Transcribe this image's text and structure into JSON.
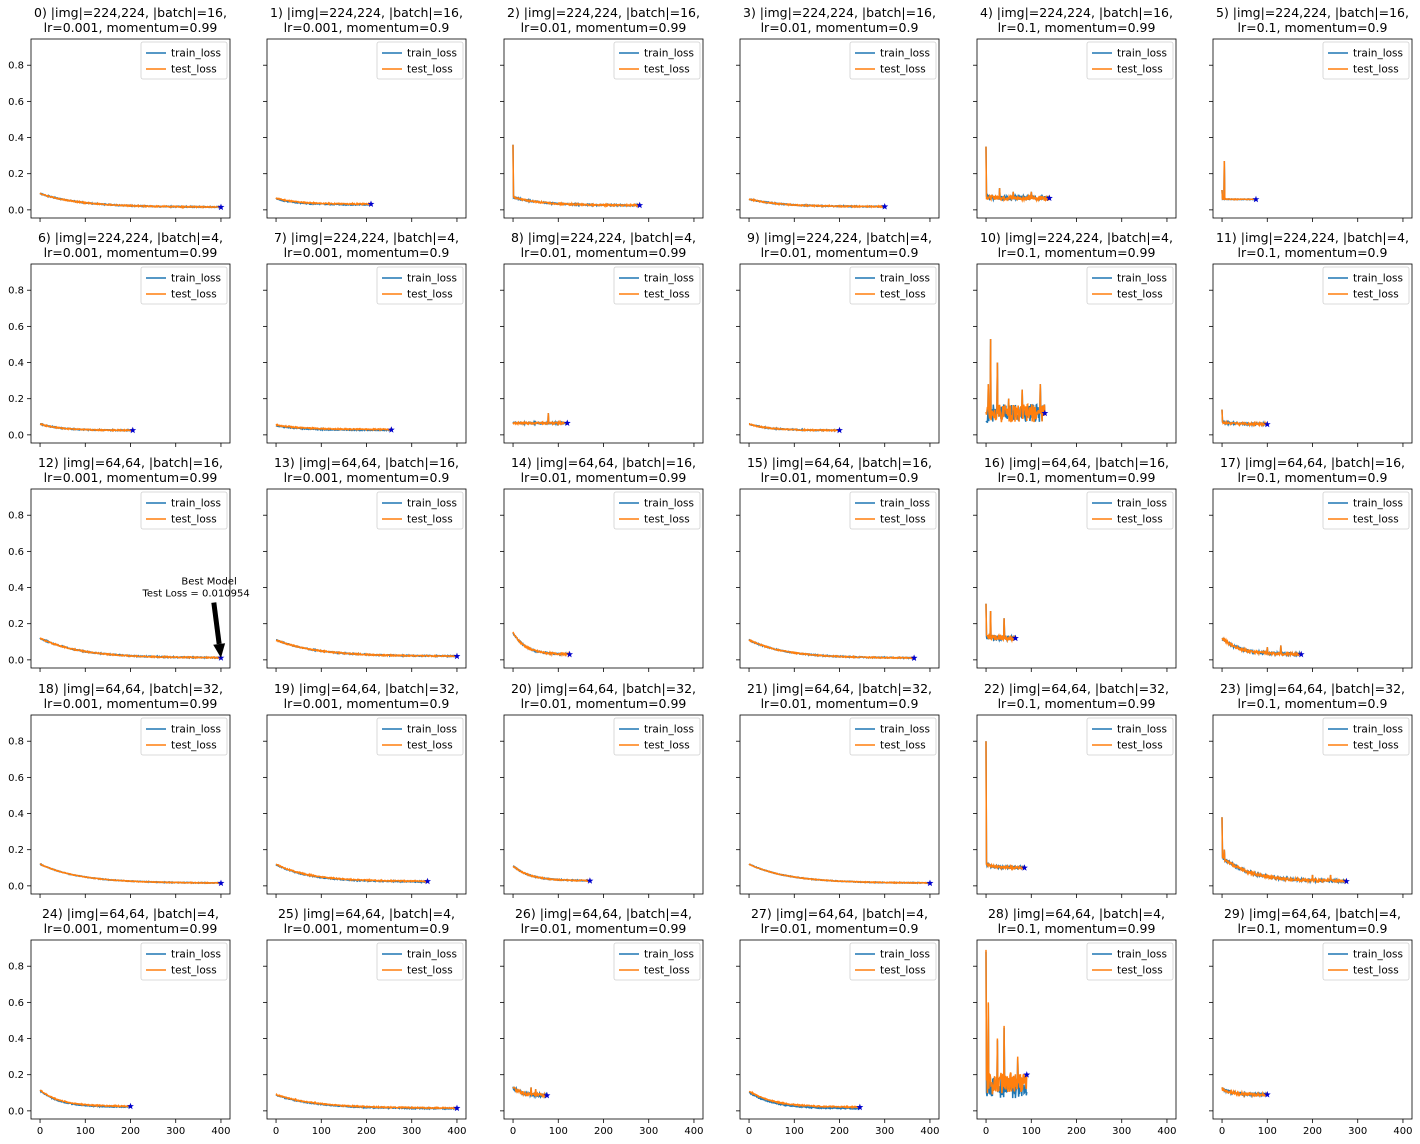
{
  "figure": {
    "series_names": [
      "train_loss",
      "test_loss"
    ],
    "series_colors": [
      "#1f77b4",
      "#ff7f0e"
    ],
    "marker_color": "#0000cc",
    "x_ticks": [
      0,
      100,
      200,
      300,
      400
    ],
    "y_ticks": [
      0.0,
      0.2,
      0.4,
      0.6,
      0.8
    ],
    "y_tick_labels": [
      "0.0",
      "0.2",
      "0.4",
      "0.6",
      "0.8"
    ],
    "xlim": [
      -20,
      420
    ],
    "ylim": [
      -0.045,
      0.945
    ],
    "legend_loc": "upper right",
    "rows": 5,
    "cols": 6
  },
  "chart_data": [
    {
      "type": "line",
      "title": [
        "0) |img|=224,224, |batch|=16,",
        "lr=0.001, momentum=0.99"
      ],
      "length": 400,
      "y0": 0.09,
      "yend": 0.015,
      "noise": 0.003,
      "spikes": [],
      "gap": 0.0,
      "best": [
        400,
        0.015
      ]
    },
    {
      "type": "line",
      "title": [
        "1) |img|=224,224, |batch|=16,",
        "lr=0.001, momentum=0.9"
      ],
      "length": 210,
      "y0": 0.065,
      "yend": 0.032,
      "noise": 0.003,
      "spikes": [],
      "gap": 0.004,
      "best": [
        210,
        0.032
      ]
    },
    {
      "type": "line",
      "title": [
        "2) |img|=224,224, |batch|=16,",
        "lr=0.01, momentum=0.99"
      ],
      "length": 280,
      "y0": 0.07,
      "yend": 0.025,
      "noise": 0.004,
      "spikes": [
        [
          0,
          0.36
        ]
      ],
      "gap": 0.0,
      "best": [
        280,
        0.025
      ]
    },
    {
      "type": "line",
      "title": [
        "3) |img|=224,224, |batch|=16,",
        "lr=0.01, momentum=0.9"
      ],
      "length": 300,
      "y0": 0.06,
      "yend": 0.018,
      "noise": 0.003,
      "spikes": [],
      "gap": 0.0,
      "best": [
        300,
        0.018
      ]
    },
    {
      "type": "line",
      "title": [
        "4) |img|=224,224, |batch|=16,",
        "lr=0.1, momentum=0.99"
      ],
      "length": 140,
      "y0": 0.07,
      "yend": 0.065,
      "noise": 0.012,
      "spikes": [
        [
          0,
          0.35
        ],
        [
          30,
          0.12
        ],
        [
          60,
          0.1
        ],
        [
          100,
          0.1
        ]
      ],
      "gap": 0.0,
      "best": [
        140,
        0.065
      ]
    },
    {
      "type": "line",
      "title": [
        "5) |img|=224,224, |batch|=16,",
        "lr=0.1, momentum=0.9"
      ],
      "length": 75,
      "y0": 0.06,
      "yend": 0.058,
      "noise": 0.002,
      "spikes": [
        [
          0,
          0.11
        ],
        [
          5,
          0.27
        ]
      ],
      "gap": 0.0,
      "best": [
        75,
        0.058
      ]
    },
    {
      "type": "line",
      "title": [
        "6) |img|=224,224, |batch|=4,",
        "lr=0.001, momentum=0.99"
      ],
      "length": 205,
      "y0": 0.06,
      "yend": 0.025,
      "noise": 0.003,
      "spikes": [],
      "gap": 0.0,
      "best": [
        205,
        0.025
      ]
    },
    {
      "type": "line",
      "title": [
        "7) |img|=224,224, |batch|=4,",
        "lr=0.001, momentum=0.9"
      ],
      "length": 255,
      "y0": 0.055,
      "yend": 0.03,
      "noise": 0.003,
      "spikes": [],
      "gap": 0.004,
      "best": [
        255,
        0.028
      ]
    },
    {
      "type": "line",
      "title": [
        "8) |img|=224,224, |batch|=4,",
        "lr=0.01, momentum=0.99"
      ],
      "length": 120,
      "y0": 0.065,
      "yend": 0.065,
      "noise": 0.005,
      "spikes": [
        [
          78,
          0.12
        ]
      ],
      "gap": 0.0,
      "best": [
        120,
        0.065
      ]
    },
    {
      "type": "line",
      "title": [
        "9) |img|=224,224, |batch|=4,",
        "lr=0.01, momentum=0.9"
      ],
      "length": 200,
      "y0": 0.06,
      "yend": 0.025,
      "noise": 0.003,
      "spikes": [],
      "gap": 0.0,
      "best": [
        200,
        0.025
      ]
    },
    {
      "type": "line",
      "title": [
        "10) |img|=224,224, |batch|=4,",
        "lr=0.1, momentum=0.99"
      ],
      "length": 130,
      "y0": 0.12,
      "yend": 0.12,
      "noise": 0.05,
      "spikes": [
        [
          5,
          0.28
        ],
        [
          10,
          0.53
        ],
        [
          25,
          0.4
        ],
        [
          50,
          0.2
        ],
        [
          80,
          0.25
        ],
        [
          120,
          0.28
        ]
      ],
      "gap": 0.0,
      "best": [
        130,
        0.12
      ]
    },
    {
      "type": "line",
      "title": [
        "11) |img|=224,224, |batch|=4,",
        "lr=0.1, momentum=0.9"
      ],
      "length": 100,
      "y0": 0.07,
      "yend": 0.06,
      "noise": 0.006,
      "spikes": [
        [
          0,
          0.14
        ]
      ],
      "gap": 0.0,
      "best": [
        100,
        0.058
      ]
    },
    {
      "type": "line",
      "title": [
        "12) |img|=64,64, |batch|=16,",
        "lr=0.001, momentum=0.99"
      ],
      "length": 400,
      "y0": 0.12,
      "yend": 0.011,
      "noise": 0.003,
      "spikes": [],
      "gap": 0.0,
      "best": [
        400,
        0.011
      ]
    },
    {
      "type": "line",
      "title": [
        "13) |img|=64,64, |batch|=16,",
        "lr=0.001, momentum=0.9"
      ],
      "length": 400,
      "y0": 0.11,
      "yend": 0.02,
      "noise": 0.003,
      "spikes": [],
      "gap": 0.0,
      "best": [
        400,
        0.02
      ]
    },
    {
      "type": "line",
      "title": [
        "14) |img|=64,64, |batch|=16,",
        "lr=0.01, momentum=0.99"
      ],
      "length": 125,
      "y0": 0.15,
      "yend": 0.03,
      "noise": 0.005,
      "spikes": [],
      "gap": 0.0,
      "best": [
        125,
        0.03
      ]
    },
    {
      "type": "line",
      "title": [
        "15) |img|=64,64, |batch|=16,",
        "lr=0.01, momentum=0.9"
      ],
      "length": 365,
      "y0": 0.11,
      "yend": 0.01,
      "noise": 0.003,
      "spikes": [],
      "gap": 0.0,
      "best": [
        365,
        0.01
      ]
    },
    {
      "type": "line",
      "title": [
        "16) |img|=64,64, |batch|=16,",
        "lr=0.1, momentum=0.99"
      ],
      "length": 65,
      "y0": 0.13,
      "yend": 0.12,
      "noise": 0.015,
      "spikes": [
        [
          0,
          0.31
        ],
        [
          10,
          0.27
        ],
        [
          40,
          0.23
        ]
      ],
      "gap": 0.0,
      "best": [
        65,
        0.12
      ]
    },
    {
      "type": "line",
      "title": [
        "17) |img|=64,64, |batch|=16,",
        "lr=0.1, momentum=0.9"
      ],
      "length": 175,
      "y0": 0.12,
      "yend": 0.03,
      "noise": 0.008,
      "spikes": [
        [
          100,
          0.07
        ],
        [
          130,
          0.08
        ]
      ],
      "gap": 0.0,
      "best": [
        175,
        0.03
      ]
    },
    {
      "type": "line",
      "title": [
        "18) |img|=64,64, |batch|=32,",
        "lr=0.001, momentum=0.99"
      ],
      "length": 400,
      "y0": 0.12,
      "yend": 0.015,
      "noise": 0.002,
      "spikes": [],
      "gap": 0.0,
      "best": [
        400,
        0.015
      ]
    },
    {
      "type": "line",
      "title": [
        "19) |img|=64,64, |batch|=32,",
        "lr=0.001, momentum=0.9"
      ],
      "length": 335,
      "y0": 0.12,
      "yend": 0.025,
      "noise": 0.003,
      "spikes": [],
      "gap": 0.003,
      "best": [
        335,
        0.025
      ]
    },
    {
      "type": "line",
      "title": [
        "20) |img|=64,64, |batch|=32,",
        "lr=0.01, momentum=0.99"
      ],
      "length": 170,
      "y0": 0.11,
      "yend": 0.028,
      "noise": 0.003,
      "spikes": [],
      "gap": 0.0,
      "best": [
        170,
        0.028
      ]
    },
    {
      "type": "line",
      "title": [
        "21) |img|=64,64, |batch|=32,",
        "lr=0.01, momentum=0.9"
      ],
      "length": 400,
      "y0": 0.12,
      "yend": 0.015,
      "noise": 0.002,
      "spikes": [],
      "gap": 0.0,
      "best": [
        400,
        0.015
      ]
    },
    {
      "type": "line",
      "title": [
        "22) |img|=64,64, |batch|=32,",
        "lr=0.1, momentum=0.99"
      ],
      "length": 85,
      "y0": 0.12,
      "yend": 0.1,
      "noise": 0.008,
      "spikes": [
        [
          0,
          0.8
        ]
      ],
      "gap": 0.0,
      "best": [
        85,
        0.1
      ]
    },
    {
      "type": "line",
      "title": [
        "23) |img|=64,64, |batch|=32,",
        "lr=0.1, momentum=0.9"
      ],
      "length": 275,
      "y0": 0.16,
      "yend": 0.025,
      "noise": 0.008,
      "spikes": [
        [
          0,
          0.38
        ],
        [
          5,
          0.2
        ],
        [
          200,
          0.06
        ],
        [
          240,
          0.06
        ]
      ],
      "gap": 0.0,
      "best": [
        275,
        0.025
      ]
    },
    {
      "type": "line",
      "title": [
        "24) |img|=64,64, |batch|=4,",
        "lr=0.001, momentum=0.99"
      ],
      "length": 200,
      "y0": 0.115,
      "yend": 0.025,
      "noise": 0.003,
      "spikes": [],
      "gap": 0.004,
      "best": [
        200,
        0.025
      ]
    },
    {
      "type": "line",
      "title": [
        "25) |img|=64,64, |batch|=4,",
        "lr=0.001, momentum=0.9"
      ],
      "length": 400,
      "y0": 0.09,
      "yend": 0.015,
      "noise": 0.003,
      "spikes": [],
      "gap": 0.003,
      "best": [
        400,
        0.015
      ]
    },
    {
      "type": "line",
      "title": [
        "26) |img|=64,64, |batch|=4,",
        "lr=0.01, momentum=0.99"
      ],
      "length": 75,
      "y0": 0.13,
      "yend": 0.085,
      "noise": 0.01,
      "spikes": [
        [
          40,
          0.13
        ],
        [
          50,
          0.12
        ]
      ],
      "gap": 0.0,
      "best": [
        75,
        0.085
      ]
    },
    {
      "type": "line",
      "title": [
        "27) |img|=64,64, |batch|=4,",
        "lr=0.01, momentum=0.9"
      ],
      "length": 245,
      "y0": 0.11,
      "yend": 0.02,
      "noise": 0.003,
      "spikes": [],
      "gap": 0.008,
      "best": [
        245,
        0.02
      ]
    },
    {
      "type": "line",
      "title": [
        "28) |img|=64,64, |batch|=4,",
        "lr=0.1, momentum=0.99"
      ],
      "length": 90,
      "y0": 0.15,
      "yend": 0.15,
      "noise": 0.06,
      "spikes": [
        [
          0,
          0.89
        ],
        [
          5,
          0.6
        ],
        [
          25,
          0.4
        ],
        [
          40,
          0.47
        ],
        [
          70,
          0.3
        ]
      ],
      "gap": 0.02,
      "best": [
        90,
        0.2
      ]
    },
    {
      "type": "line",
      "title": [
        "29) |img|=64,64, |batch|=4,",
        "lr=0.1, momentum=0.9"
      ],
      "length": 100,
      "y0": 0.12,
      "yend": 0.09,
      "noise": 0.008,
      "spikes": [
        [
          0,
          0.13
        ]
      ],
      "gap": 0.0,
      "best": [
        100,
        0.09
      ]
    }
  ],
  "annotation": {
    "panel": 12,
    "lines": [
      "Best Model",
      "Test Loss = 0.010954"
    ],
    "xy": [
      400,
      0.011
    ],
    "text_xy": [
      345,
      0.35
    ]
  }
}
